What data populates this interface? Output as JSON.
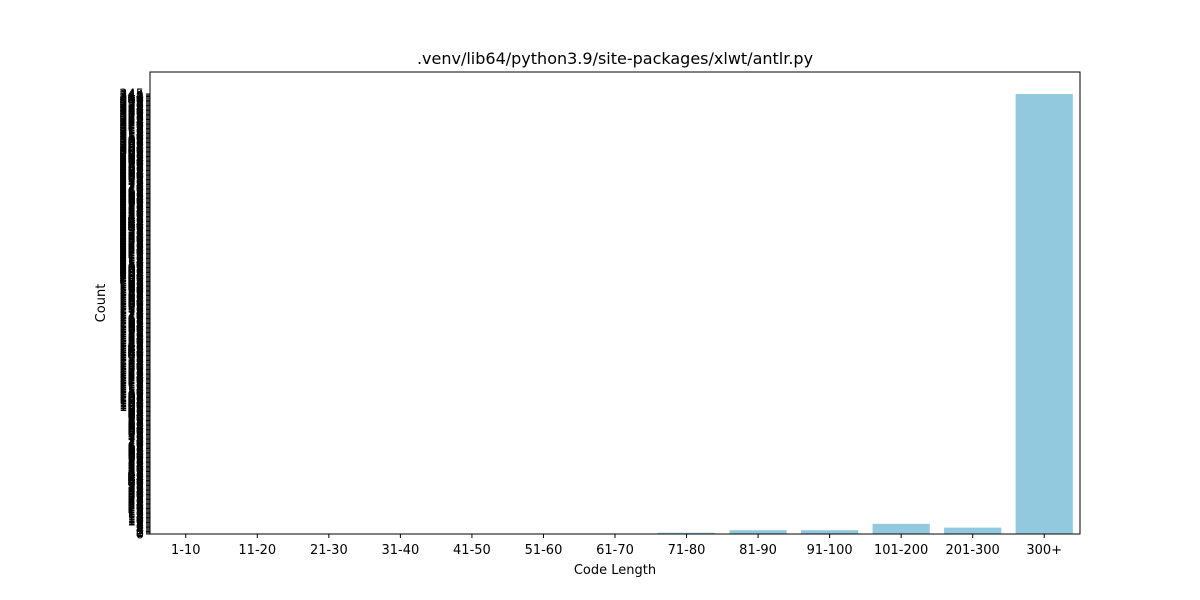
{
  "chart_data": {
    "type": "bar",
    "title": ".venv/lib64/python3.9/site-packages/xlwt/antlr.py",
    "xlabel": "Code Length",
    "ylabel": "Count",
    "categories": [
      "1-10",
      "11-20",
      "21-30",
      "31-40",
      "41-50",
      "51-60",
      "61-70",
      "71-80",
      "81-90",
      "91-100",
      "101-200",
      "201-300",
      "300+"
    ],
    "values": [
      0,
      0,
      0,
      0,
      0,
      0,
      0,
      1,
      3,
      3,
      8,
      5,
      345
    ],
    "ylim": [
      0,
      345
    ],
    "yticks_every_integer": true,
    "bar_color": "#92c9de",
    "grid": false,
    "legend": "none"
  }
}
